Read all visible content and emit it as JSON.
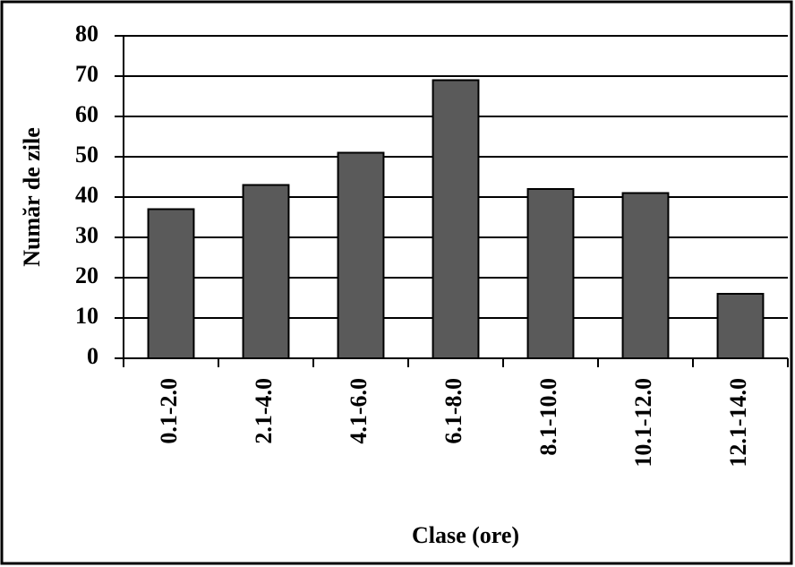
{
  "chart_data": {
    "type": "bar",
    "y_label": "Număr de zile",
    "x_label": "Clase (ore)",
    "categories": [
      "0.1-2.0",
      "2.1-4.0",
      "4.1-6.0",
      "6.1-8.0",
      "8.1-10.0",
      "10.1-12.0",
      "12.1-14.0"
    ],
    "values": [
      37,
      43,
      51,
      69,
      42,
      41,
      16
    ],
    "color": "#5a5a5a",
    "ylim": [
      0,
      80
    ],
    "yticks": [
      0,
      10,
      20,
      30,
      40,
      50,
      60,
      70,
      80
    ],
    "grid": true
  }
}
